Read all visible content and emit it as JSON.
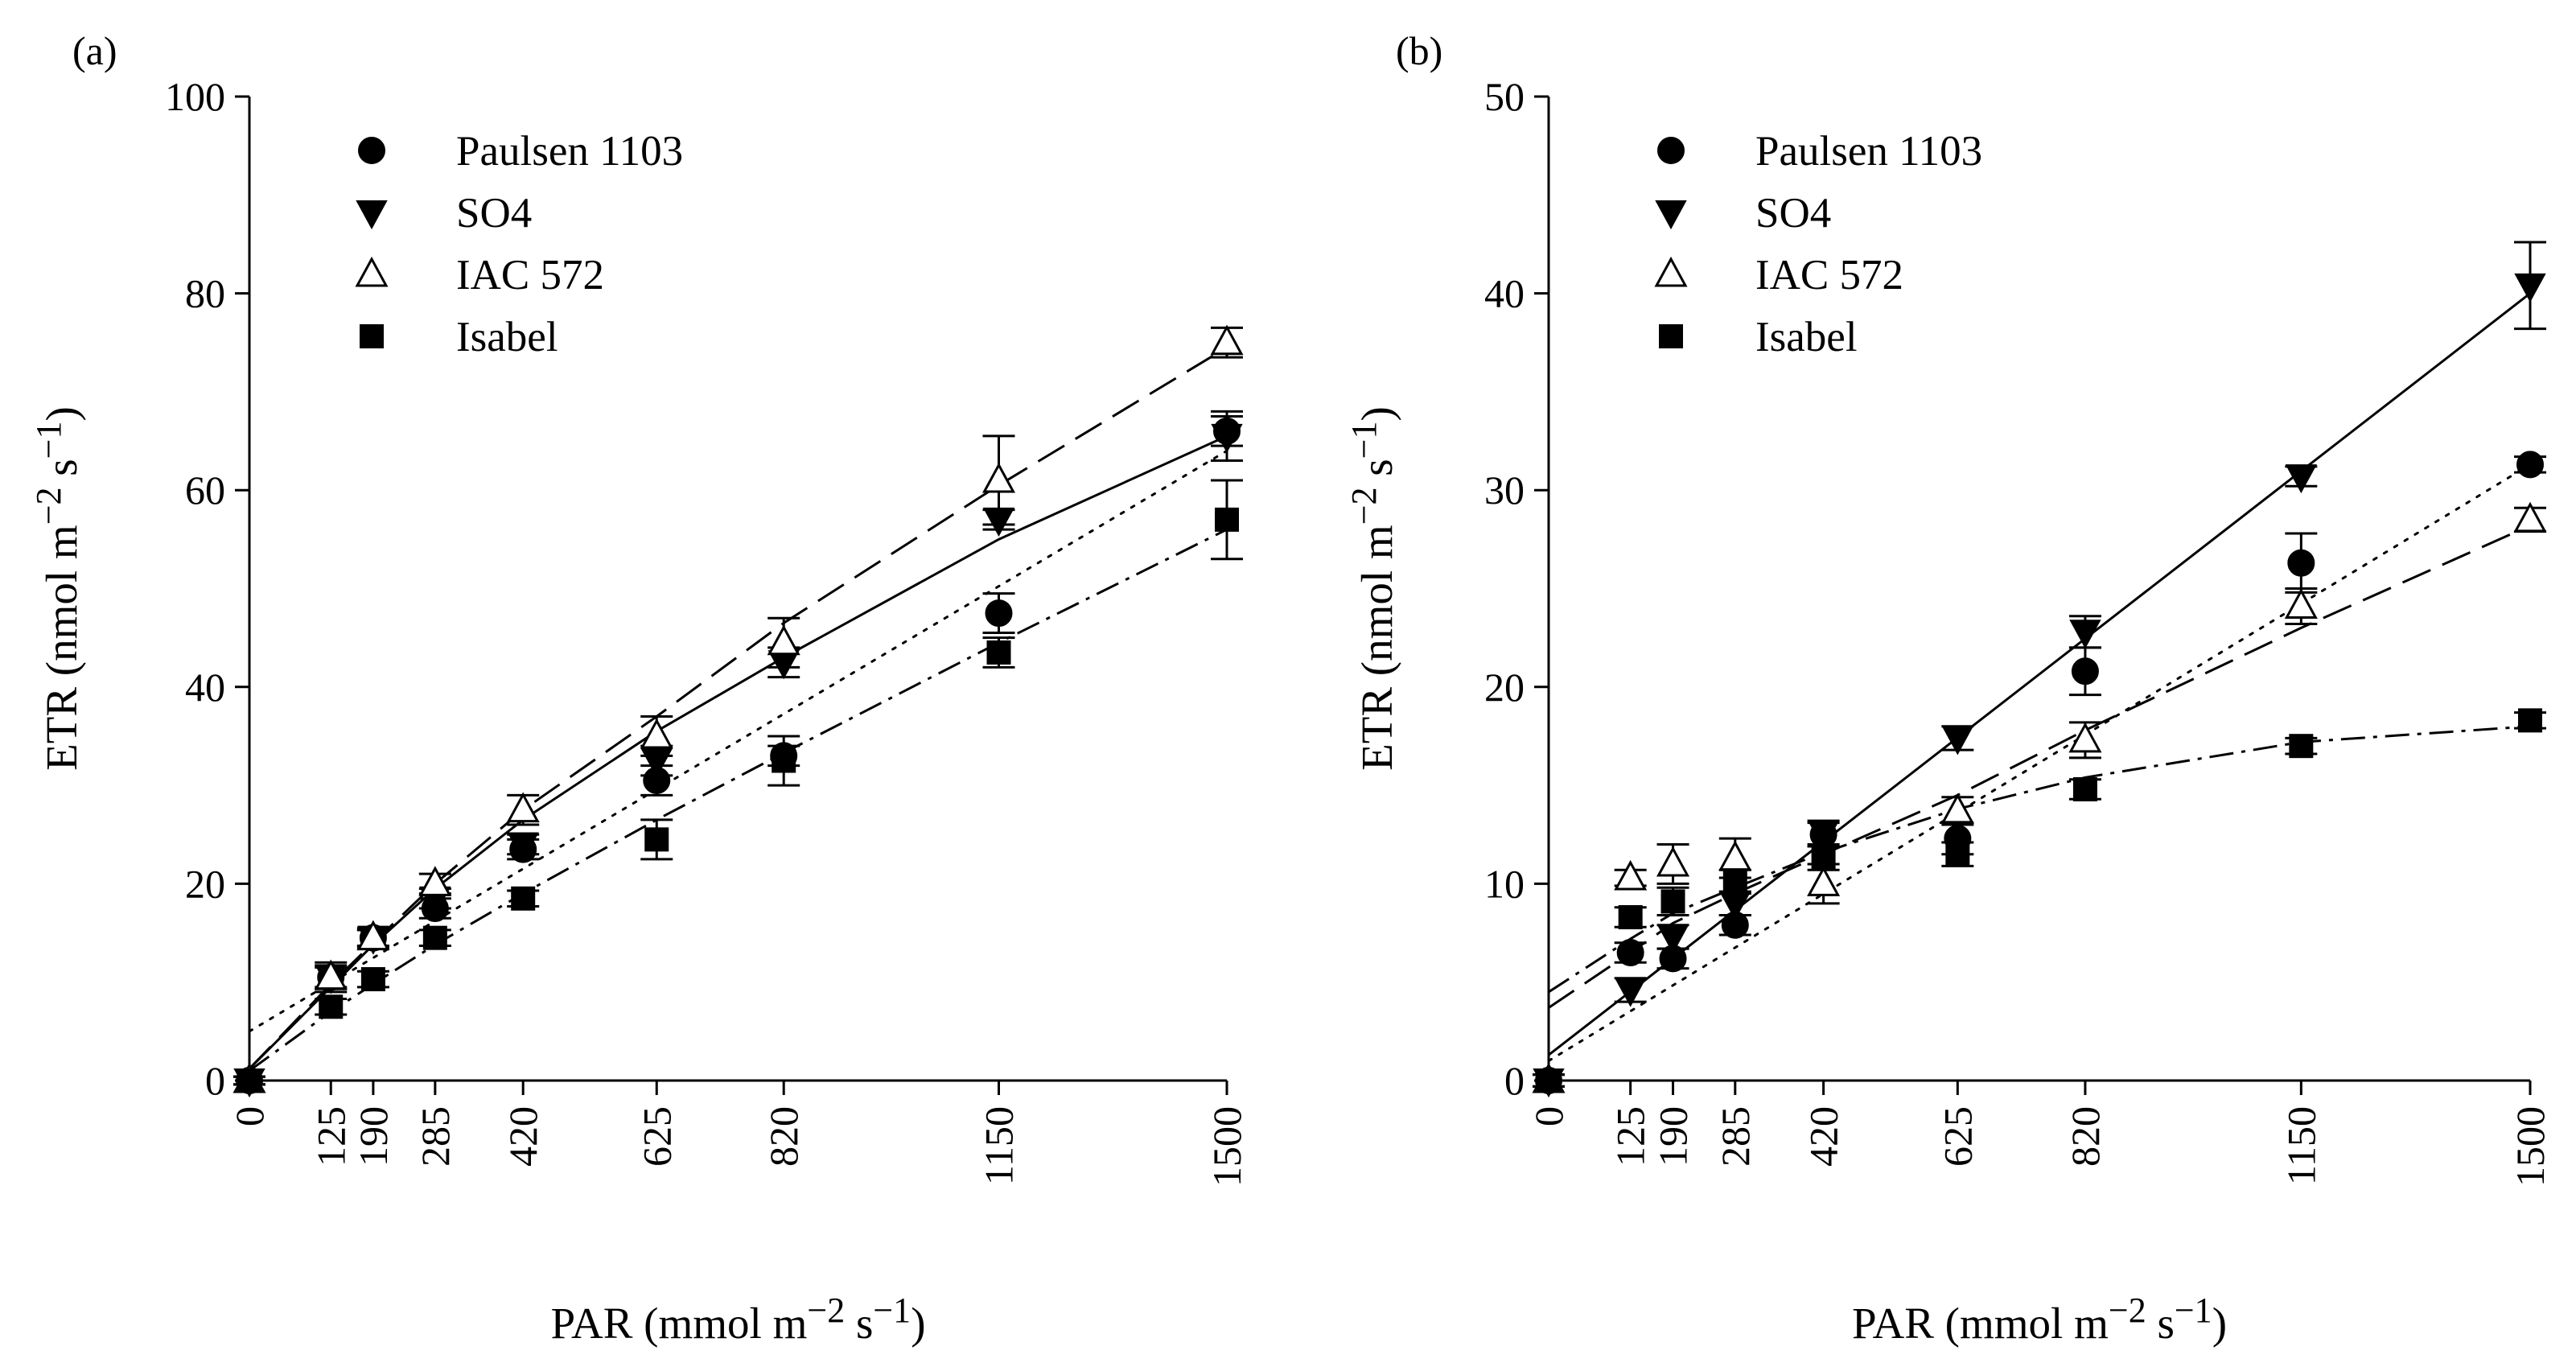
{
  "chart_data": [
    {
      "panel": "(a)",
      "type": "scatter",
      "xlabel": "PAR (mmol m−2 s−1)",
      "ylabel": "ETR (nmol m−2 s−1)",
      "xlim": [
        0,
        1500
      ],
      "ylim": [
        0,
        100
      ],
      "xticks": [
        0,
        125,
        190,
        285,
        420,
        625,
        820,
        1150,
        1500
      ],
      "yticks": [
        0,
        20,
        40,
        60,
        80,
        100
      ],
      "legend": {
        "position": "top-left"
      },
      "series": [
        {
          "name": "Paulsen 1103",
          "marker": "circle",
          "line": "dotted",
          "x": [
            0,
            125,
            190,
            285,
            420,
            625,
            820,
            1150,
            1500
          ],
          "y": [
            0,
            10.5,
            14.5,
            17.5,
            23.5,
            30.5,
            33,
            47.5,
            66
          ],
          "err": [
            0.4,
            1.2,
            0.8,
            1,
            1,
            1.5,
            1,
            2,
            1.5
          ],
          "fit": {
            "x": [
              0,
              1500
            ],
            "y": [
              5,
              64
            ]
          }
        },
        {
          "name": "SO4",
          "marker": "triangle-down",
          "line": "solid",
          "x": [
            0,
            125,
            190,
            285,
            420,
            625,
            820,
            1150,
            1500
          ],
          "y": [
            0,
            10.5,
            14.5,
            18.5,
            24,
            32.5,
            42.5,
            57,
            65.5
          ],
          "err": [
            0.4,
            1,
            0.8,
            1,
            1,
            1.5,
            1.5,
            1,
            2.5
          ],
          "fit": {
            "x": [
              0,
              125,
              190,
              285,
              420,
              625,
              820,
              1150,
              1500
            ],
            "y": [
              1.2,
              9.5,
              13.8,
              19.5,
              26.5,
              35.5,
              43,
              55,
              65.5
            ]
          }
        },
        {
          "name": "IAC 572",
          "marker": "triangle-up-open",
          "line": "long-dash",
          "x": [
            0,
            125,
            190,
            285,
            420,
            625,
            820,
            1150,
            1500
          ],
          "y": [
            0,
            10.5,
            14.5,
            20,
            27.5,
            35,
            44.5,
            61,
            75
          ],
          "err": [
            0.4,
            1.5,
            1,
            1,
            1.5,
            2,
            2.5,
            4.5,
            1.5
          ],
          "fit": {
            "x": [
              0,
              125,
              190,
              285,
              420,
              625,
              820,
              1150,
              1500
            ],
            "y": [
              1.2,
              9.8,
              14,
              20,
              27.5,
              37,
              46.5,
              60.5,
              74.5
            ]
          }
        },
        {
          "name": "Isabel",
          "marker": "square",
          "line": "dash-dot",
          "x": [
            0,
            125,
            190,
            285,
            420,
            625,
            820,
            1150,
            1500
          ],
          "y": [
            0,
            7.5,
            10.3,
            14.5,
            18.5,
            24.5,
            32.5,
            43.5,
            57
          ],
          "err": [
            0.4,
            0.8,
            0.8,
            0.8,
            0.8,
            2,
            2.5,
            1.5,
            4
          ],
          "fit": {
            "x": [
              0,
              125,
              190,
              285,
              420,
              625,
              820,
              1150,
              1500
            ],
            "y": [
              1,
              7,
              9.8,
              13.8,
              19,
              26.5,
              33.3,
              44.5,
              56
            ]
          }
        }
      ]
    },
    {
      "panel": "(b)",
      "type": "scatter",
      "xlabel": "PAR (mmol m−2 s−1)",
      "ylabel": "ETR (nmol m−2 s−1)",
      "xlim": [
        0,
        1500
      ],
      "ylim": [
        0,
        50
      ],
      "xticks": [
        0,
        125,
        190,
        285,
        420,
        625,
        820,
        1150,
        1500
      ],
      "yticks": [
        0,
        10,
        20,
        30,
        40,
        50
      ],
      "legend": {
        "position": "top-left"
      },
      "series": [
        {
          "name": "Paulsen 1103",
          "marker": "circle",
          "line": "dotted",
          "x": [
            0,
            125,
            190,
            285,
            420,
            625,
            820,
            1150,
            1500
          ],
          "y": [
            0,
            6.5,
            6.2,
            7.9,
            12.5,
            12.3,
            20.8,
            26.3,
            31.3
          ],
          "err": [
            0.3,
            0.5,
            0.5,
            0.5,
            0.6,
            0.8,
            1.2,
            1.5,
            0.4
          ],
          "fit": {
            "x": [
              0,
              1500
            ],
            "y": [
              1,
              31.3
            ]
          }
        },
        {
          "name": "SO4",
          "marker": "triangle-down",
          "line": "solid",
          "x": [
            0,
            125,
            190,
            285,
            420,
            625,
            820,
            1150,
            1500
          ],
          "y": [
            0,
            4.6,
            7.3,
            9,
            12.6,
            17.4,
            22.8,
            30.7,
            40.4
          ],
          "err": [
            0.3,
            0.6,
            0.6,
            0.6,
            0.6,
            0.6,
            0.8,
            0.5,
            2.2
          ],
          "fit": {
            "x": [
              0,
              1500
            ],
            "y": [
              1.3,
              40
            ]
          }
        },
        {
          "name": "IAC 572",
          "marker": "triangle-up-open",
          "line": "long-dash",
          "x": [
            0,
            125,
            190,
            285,
            420,
            625,
            820,
            1150,
            1500
          ],
          "y": [
            0,
            10.3,
            11,
            11.3,
            10,
            13.7,
            17.3,
            24.1,
            28.5
          ],
          "err": [
            0.3,
            0.4,
            1,
            1,
            1,
            0.7,
            0.9,
            0.9,
            0.6
          ],
          "fit": {
            "x": [
              0,
              125,
              190,
              285,
              420,
              625,
              820,
              1150,
              1500
            ],
            "y": [
              3.7,
              6.5,
              8,
              9.5,
              11.5,
              14.5,
              17.8,
              23,
              28.2
            ]
          }
        },
        {
          "name": "Isabel",
          "marker": "square",
          "line": "dash-dot",
          "x": [
            0,
            125,
            190,
            285,
            420,
            625,
            820,
            1150,
            1500
          ],
          "y": [
            0,
            8.3,
            9.1,
            10.1,
            11.3,
            11.5,
            14.8,
            17,
            18.3
          ],
          "err": [
            0.3,
            0.5,
            0.7,
            0.6,
            0.6,
            0.6,
            0.5,
            0.4,
            0.4
          ],
          "fit": {
            "x": [
              0,
              125,
              190,
              285,
              420,
              625,
              820,
              1150,
              1500
            ],
            "y": [
              4.5,
              7.2,
              8.5,
              9.8,
              11.6,
              13.8,
              15.4,
              17.2,
              18
            ]
          }
        }
      ]
    }
  ]
}
